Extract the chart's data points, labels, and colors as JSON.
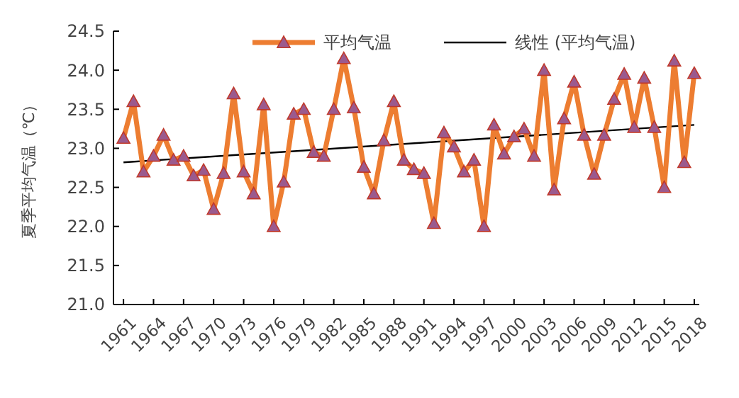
{
  "chart_data": {
    "type": "line",
    "ylabel": "夏季平均气温（℃）",
    "x": [
      1961,
      1962,
      1963,
      1964,
      1965,
      1966,
      1967,
      1968,
      1969,
      1970,
      1971,
      1972,
      1973,
      1974,
      1975,
      1976,
      1977,
      1978,
      1979,
      1980,
      1981,
      1982,
      1983,
      1984,
      1985,
      1986,
      1987,
      1988,
      1989,
      1990,
      1991,
      1992,
      1993,
      1994,
      1995,
      1996,
      1997,
      1998,
      1999,
      2000,
      2001,
      2002,
      2003,
      2004,
      2005,
      2006,
      2007,
      2008,
      2009,
      2010,
      2011,
      2012,
      2013,
      2014,
      2015,
      2016,
      2017,
      2018
    ],
    "series": [
      {
        "name": "平均气温",
        "color": "#ed7d31",
        "marker": "triangle",
        "values": [
          23.13,
          23.6,
          22.7,
          22.9,
          23.17,
          22.85,
          22.9,
          22.65,
          22.72,
          22.22,
          22.68,
          23.7,
          22.7,
          22.42,
          23.56,
          22.0,
          22.57,
          23.44,
          23.5,
          22.95,
          22.9,
          23.5,
          24.15,
          23.52,
          22.76,
          22.42,
          23.1,
          23.6,
          22.85,
          22.73,
          22.68,
          22.04,
          23.2,
          23.02,
          22.7,
          22.85,
          22.0,
          23.3,
          22.93,
          23.15,
          23.25,
          22.9,
          24.0,
          22.47,
          23.38,
          23.85,
          23.17,
          22.67,
          23.17,
          23.63,
          23.95,
          23.27,
          23.9,
          23.27,
          22.5,
          24.12,
          22.82,
          23.96
        ]
      },
      {
        "name": "线性 (平均气温)",
        "color": "#000000",
        "marker": "none",
        "x": [
          1961,
          2018
        ],
        "values": [
          22.82,
          23.3
        ]
      }
    ],
    "xlim": [
      1960,
      2018.5
    ],
    "xticks": [
      1961,
      1964,
      1967,
      1970,
      1973,
      1976,
      1979,
      1982,
      1985,
      1988,
      1991,
      1994,
      1997,
      2000,
      2003,
      2006,
      2009,
      2012,
      2015,
      2018
    ],
    "ylim": [
      21.0,
      24.5
    ],
    "yticks": [
      {
        "value": 21,
        "label": "21.0"
      },
      21.5,
      {
        "value": 22,
        "label": "22.0"
      },
      22.5,
      {
        "value": 23,
        "label": "23.0"
      },
      23.5,
      {
        "value": 24,
        "label": "24.0"
      },
      24.5
    ],
    "grid": false,
    "legend": "top"
  }
}
